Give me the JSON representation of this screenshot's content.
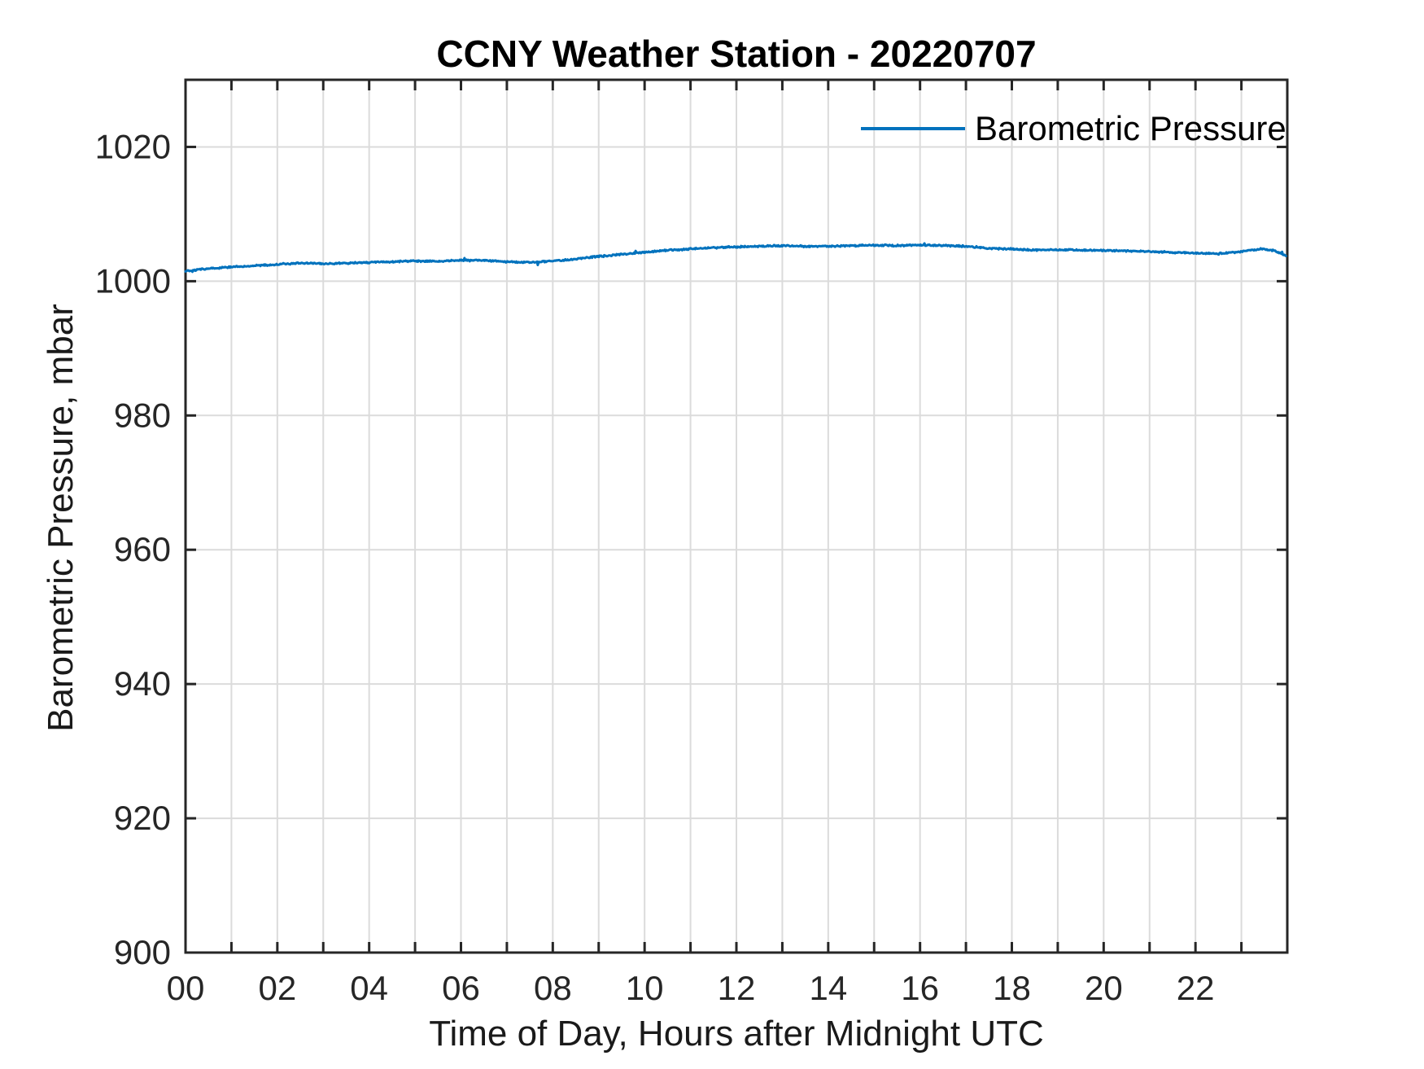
{
  "chart_data": {
    "type": "line",
    "title": "CCNY Weather Station - 20220707",
    "xlabel": "Time of Day, Hours after Midnight UTC",
    "ylabel": "Barometric Pressure, mbar",
    "xlim": [
      0,
      24
    ],
    "ylim": [
      900,
      1030
    ],
    "grid": true,
    "x_minor_tick_step": 1,
    "x_tick_label_positions": [
      0,
      2,
      4,
      6,
      8,
      10,
      12,
      14,
      16,
      18,
      20,
      22
    ],
    "x_tick_labels": [
      "00",
      "02",
      "04",
      "06",
      "08",
      "10",
      "12",
      "14",
      "16",
      "18",
      "20",
      "22"
    ],
    "y_tick_positions": [
      900,
      920,
      940,
      960,
      980,
      1000,
      1020
    ],
    "y_tick_labels": [
      "900",
      "920",
      "940",
      "960",
      "980",
      "1000",
      "1020"
    ],
    "legend": {
      "position": "top-right",
      "box": false,
      "entries": [
        {
          "label": "Barometric Pressure",
          "color": "#0072BD"
        }
      ]
    },
    "series": [
      {
        "name": "Barometric Pressure",
        "color": "#0072BD",
        "x": [
          0,
          0.5,
          1,
          1.5,
          2,
          2.5,
          3,
          3.5,
          4,
          4.5,
          5,
          5.5,
          6,
          6.5,
          7,
          7.5,
          8,
          8.5,
          9,
          9.5,
          10,
          10.5,
          11,
          11.5,
          12,
          12.5,
          13,
          13.5,
          14,
          14.5,
          15,
          15.5,
          16,
          16.5,
          17,
          17.5,
          18,
          18.5,
          19,
          19.5,
          20,
          20.5,
          21,
          21.5,
          22,
          22.5,
          23,
          23.4,
          23.7,
          23.97
        ],
        "y": [
          1001.5,
          1001.9,
          1002.1,
          1002.3,
          1002.5,
          1002.7,
          1002.6,
          1002.7,
          1002.8,
          1002.9,
          1003.0,
          1003.0,
          1003.1,
          1003.1,
          1002.9,
          1002.8,
          1003.0,
          1003.3,
          1003.7,
          1004.0,
          1004.3,
          1004.6,
          1004.8,
          1005.0,
          1005.1,
          1005.2,
          1005.3,
          1005.2,
          1005.2,
          1005.3,
          1005.35,
          1005.3,
          1005.4,
          1005.3,
          1005.2,
          1004.9,
          1004.8,
          1004.6,
          1004.7,
          1004.65,
          1004.6,
          1004.5,
          1004.4,
          1004.3,
          1004.2,
          1004.1,
          1004.4,
          1004.8,
          1004.6,
          1003.8
        ]
      }
    ],
    "noise_amplitude_mbar": 0.14,
    "spikes": [
      {
        "x": 0.15,
        "dy": -0.25
      },
      {
        "x": 6.08,
        "dy": 0.3
      },
      {
        "x": 7.68,
        "dy": -0.45
      },
      {
        "x": 9.8,
        "dy": 0.4
      },
      {
        "x": 16.1,
        "dy": 0.25
      },
      {
        "x": 23.88,
        "dy": 0.35
      }
    ]
  },
  "colors": {
    "line": "#0072BD",
    "axis": "#262626",
    "grid": "#dbdbdb",
    "tick_text": "#262626",
    "background": "#ffffff"
  }
}
